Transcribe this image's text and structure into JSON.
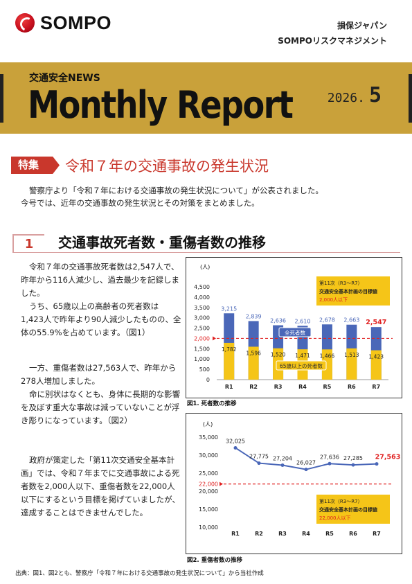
{
  "header": {
    "logo_text": "SOMPO",
    "company_1": "損保ジャパン",
    "company_2": "SOMPOリスクマネジメント"
  },
  "banner": {
    "news_label": "交通安全NEWS",
    "title": "Monthly Report",
    "issue_year": "2026.",
    "issue_month": "5",
    "accent_color": "#c9a13a"
  },
  "feature": {
    "tag": "特集",
    "title": "令和７年の交通事故の発生状況",
    "intro": [
      "警察庁より「令和７年における交通事故の発生状況について」が公表されました。",
      "今号では、近年の交通事故の発生状況とその対策をまとめました。"
    ]
  },
  "section": {
    "number": "1",
    "title": "交通事故死者数・重傷者数の推移"
  },
  "body": {
    "para1": "令和７年の交通事故死者数は2,547人で、昨年から116人減少し、過去最少を記録しました。",
    "para2": "うち、65歳以上の高齢者の死者数は1,423人で昨年より90人減少したものの、全体の55.9%を占めています。（図1）",
    "para3": "一方、重傷者数は27,563人で、昨年から278人増加しました。",
    "para4": "命に別状はなくとも、身体に長期的な影響を及ぼす重大な事故は減っていないことが浮き彫りになっています。（図2）",
    "para5": "政府が策定した「第11次交通安全基本計画」では、令和７年までに交通事故による死者数を2,000人以下、重傷者数を22,000人以下にするという目標を掲げていましたが、達成することはできませんでした。"
  },
  "chart_data": [
    {
      "type": "bar",
      "caption": "図1. 死者数の推移",
      "unit": "(人)",
      "categories": [
        "R1",
        "R2",
        "R3",
        "R4",
        "R5",
        "R6",
        "R7"
      ],
      "series": [
        {
          "name": "全死者数",
          "values": [
            3215,
            2839,
            2636,
            2610,
            2678,
            2663,
            2547
          ],
          "color": "#4a67b8"
        },
        {
          "name": "65歳以上の死者数",
          "values": [
            1782,
            1596,
            1520,
            1471,
            1466,
            1513,
            1423
          ],
          "color": "#f5c518"
        }
      ],
      "total_labels": [
        "3,215",
        "2,839",
        "2,636",
        "2,610",
        "2,678",
        "2,663",
        "2,547"
      ],
      "elderly_labels": [
        "1,782",
        "1,596",
        "1,520",
        "1,471",
        "1,466",
        "1,513",
        "1,423"
      ],
      "y_ticks": [
        "0",
        "500",
        "1,000",
        "1,500",
        "2,000",
        "2,500",
        "3,000",
        "3,500",
        "4,000",
        "4,500"
      ],
      "ylim": [
        0,
        4500
      ],
      "target": {
        "value": 2000,
        "label": "2,000"
      },
      "legend_box": {
        "line1": "第11次（R3～R7）",
        "line2": "交通安全基本計画の目標値",
        "line3": "2,000人以下"
      }
    },
    {
      "type": "line",
      "caption": "図2. 重傷者数の推移",
      "unit": "(人)",
      "categories": [
        "R1",
        "R2",
        "R3",
        "R4",
        "R5",
        "R6",
        "R7"
      ],
      "series": [
        {
          "name": "重傷者数",
          "values": [
            32025,
            27775,
            27204,
            26027,
            27636,
            27285,
            27563
          ],
          "color": "#4a67b8"
        }
      ],
      "point_labels": [
        "32,025",
        "27,775",
        "27,204",
        "26,027",
        "27,636",
        "27,285",
        "27,563"
      ],
      "y_ticks": [
        "10,000",
        "15,000",
        "20,000",
        "25,000",
        "30,000",
        "35,000"
      ],
      "ylim": [
        10000,
        35000
      ],
      "target": {
        "value": 22000,
        "label": "22,000"
      },
      "legend_box": {
        "line1": "第11次（R3～R7）",
        "line2": "交通安全基本計画の目標値",
        "line3": "22,000人以下"
      }
    }
  ],
  "footer": {
    "source": "出典：図1、図2とも、警察庁「令和７年における交通事故の発生状況について」から当社作成"
  }
}
